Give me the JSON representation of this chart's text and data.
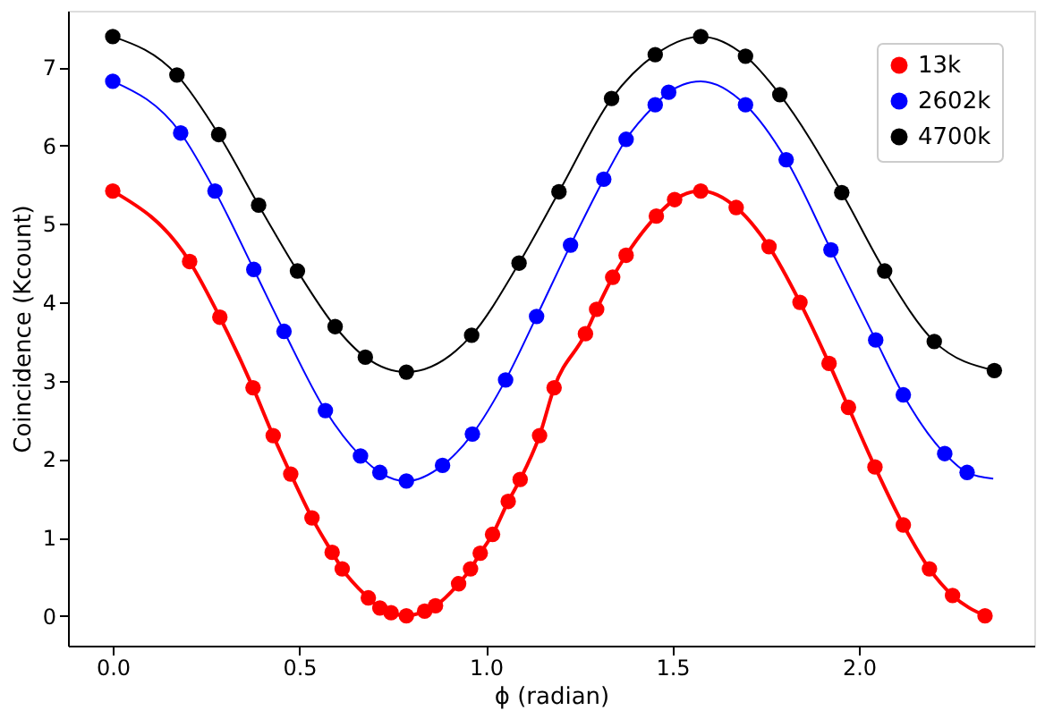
{
  "chart_data": {
    "type": "scatter",
    "xlabel": "ϕ (radian)",
    "ylabel": "Coincidence (Kcount)",
    "xlim": [
      -0.12,
      2.47
    ],
    "ylim": [
      -0.38,
      7.72
    ],
    "xticks": [
      {
        "value": 0,
        "label": "0.0"
      },
      {
        "value": 0.5,
        "label": "0.5"
      },
      {
        "value": 1,
        "label": "1.0"
      },
      {
        "value": 1.5,
        "label": "1.5"
      },
      {
        "value": 2,
        "label": "2.0"
      }
    ],
    "yticks": [
      0,
      1,
      2,
      3,
      4,
      5,
      6,
      7
    ],
    "grid": false,
    "legend": "top right",
    "series": [
      {
        "type": "line",
        "marker": "none",
        "color": "#ff0000",
        "x": [
          0,
          0.206,
          0.287,
          0.376,
          0.43,
          0.477,
          0.534,
          0.588,
          0.615,
          0.685,
          0.716,
          0.746,
          0.787,
          0.836,
          0.865,
          0.927,
          0.959,
          0.985,
          1.018,
          1.06,
          1.092,
          1.144,
          1.183,
          1.267,
          1.297,
          1.34,
          1.376,
          1.457,
          1.506,
          1.576,
          1.671,
          1.759,
          1.842,
          1.92,
          1.972,
          2.043,
          2.119,
          2.189,
          2.251,
          2.338
        ],
        "values": [
          5.42,
          4.52,
          3.81,
          2.91,
          2.3,
          1.81,
          1.25,
          0.81,
          0.6,
          0.23,
          0.1,
          0.04,
          0,
          0.06,
          0.13,
          0.41,
          0.6,
          0.8,
          1.04,
          1.46,
          1.74,
          2.3,
          2.91,
          3.6,
          3.91,
          4.32,
          4.6,
          5.1,
          5.31,
          5.42,
          5.21,
          4.71,
          4,
          3.22,
          2.66,
          1.9,
          1.16,
          0.6,
          0.26,
          0
        ]
      },
      {
        "type": "line",
        "marker": "none",
        "color": "#0000ff",
        "x": [
          0,
          0.182,
          0.274,
          0.378,
          0.459,
          0.57,
          0.664,
          0.716,
          0.787,
          0.884,
          0.964,
          1.053,
          1.136,
          1.227,
          1.316,
          1.376,
          1.454,
          1.49,
          1.576,
          1.696,
          1.805,
          1.925,
          2.045,
          2.119,
          2.23,
          2.29,
          2.36
        ],
        "values": [
          6.82,
          6.16,
          5.42,
          4.42,
          3.63,
          2.62,
          2.04,
          1.83,
          1.72,
          1.92,
          2.32,
          3.01,
          3.82,
          4.73,
          5.57,
          6.08,
          6.52,
          6.68,
          6.82,
          6.52,
          5.82,
          4.67,
          3.52,
          2.82,
          2.07,
          1.83,
          1.75
        ]
      },
      {
        "type": "line",
        "marker": "none",
        "color": "#000000",
        "x": [
          0,
          0.172,
          0.284,
          0.391,
          0.495,
          0.596,
          0.677,
          0.787,
          0.962,
          1.089,
          1.196,
          1.337,
          1.454,
          1.576,
          1.696,
          1.788,
          1.954,
          2.069,
          2.202,
          2.363
        ],
        "values": [
          7.39,
          6.9,
          6.14,
          5.24,
          4.4,
          3.69,
          3.3,
          3.11,
          3.58,
          4.5,
          5.41,
          6.6,
          7.16,
          7.39,
          7.14,
          6.65,
          5.4,
          4.4,
          3.5,
          3.13
        ]
      },
      {
        "marker": "circle",
        "name": "13k",
        "color": "#ff0000",
        "x": [
          0,
          0.206,
          0.287,
          0.376,
          0.43,
          0.477,
          0.534,
          0.588,
          0.615,
          0.685,
          0.716,
          0.746,
          0.787,
          0.836,
          0.865,
          0.927,
          0.959,
          0.985,
          1.018,
          1.06,
          1.092,
          1.144,
          1.183,
          1.267,
          1.297,
          1.34,
          1.376,
          1.457,
          1.506,
          1.576,
          1.671,
          1.759,
          1.842,
          1.92,
          1.972,
          2.043,
          2.119,
          2.189,
          2.251,
          2.338
        ],
        "values": [
          5.42,
          4.52,
          3.81,
          2.91,
          2.3,
          1.81,
          1.25,
          0.81,
          0.6,
          0.23,
          0.1,
          0.04,
          0,
          0.06,
          0.13,
          0.41,
          0.6,
          0.8,
          1.04,
          1.46,
          1.74,
          2.3,
          2.91,
          3.6,
          3.91,
          4.32,
          4.6,
          5.1,
          5.31,
          5.42,
          5.21,
          4.71,
          4,
          3.22,
          2.66,
          1.9,
          1.16,
          0.6,
          0.26,
          0
        ]
      },
      {
        "marker": "circle",
        "name": "2602k",
        "color": "#0000ff",
        "x": [
          0,
          0.182,
          0.274,
          0.378,
          0.459,
          0.57,
          0.664,
          0.716,
          0.787,
          0.884,
          0.964,
          1.053,
          1.136,
          1.227,
          1.316,
          1.376,
          1.454,
          1.49,
          1.696,
          1.805,
          1.925,
          2.045,
          2.119,
          2.23,
          2.29
        ],
        "values": [
          6.82,
          6.16,
          5.42,
          4.42,
          3.63,
          2.62,
          2.04,
          1.83,
          1.72,
          1.92,
          2.32,
          3.01,
          3.82,
          4.73,
          5.57,
          6.08,
          6.52,
          6.68,
          6.52,
          5.82,
          4.67,
          3.52,
          2.82,
          2.07,
          1.83
        ]
      },
      {
        "marker": "circle",
        "name": "4700k",
        "color": "#000000",
        "x": [
          0,
          0.172,
          0.284,
          0.391,
          0.495,
          0.596,
          0.677,
          0.787,
          0.962,
          1.089,
          1.196,
          1.337,
          1.454,
          1.576,
          1.696,
          1.788,
          1.954,
          2.069,
          2.202,
          2.363
        ],
        "values": [
          7.39,
          6.9,
          6.14,
          5.24,
          4.4,
          3.69,
          3.3,
          3.11,
          3.58,
          4.5,
          5.41,
          6.6,
          7.16,
          7.39,
          7.14,
          6.65,
          5.4,
          4.4,
          3.5,
          3.13
        ]
      }
    ]
  }
}
